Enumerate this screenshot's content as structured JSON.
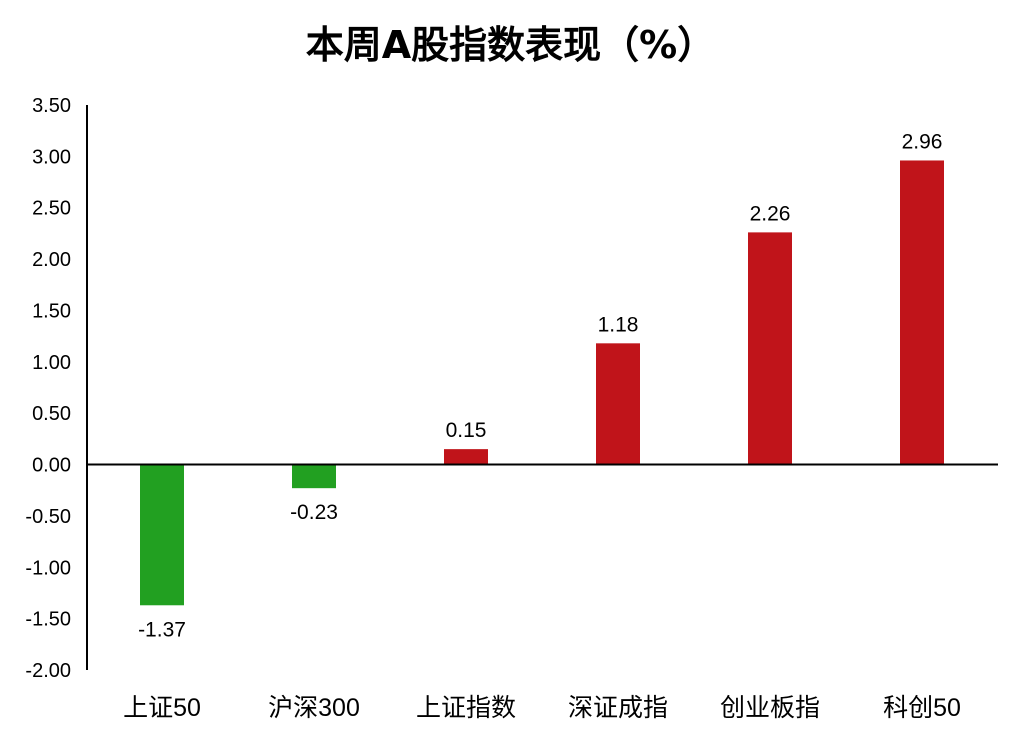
{
  "chart_data": {
    "type": "bar",
    "title": "本周A股指数表现（%）",
    "xlabel": "",
    "ylabel": "",
    "categories": [
      "上证50",
      "沪深300",
      "上证指数",
      "深证成指",
      "创业板指",
      "科创50"
    ],
    "values": [
      -1.37,
      -0.23,
      0.15,
      1.18,
      2.26,
      2.96
    ],
    "ylim": [
      -2.0,
      3.5
    ],
    "yticks": [
      "3.50",
      "3.00",
      "2.50",
      "2.00",
      "1.50",
      "1.00",
      "0.50",
      "0.00",
      "-0.50",
      "-1.00",
      "-1.50",
      "-2.00"
    ],
    "data_labels": [
      "-1.37",
      "-0.23",
      "0.15",
      "1.18",
      "2.26",
      "2.96"
    ],
    "grid": false,
    "legend": "none",
    "colors": {
      "positive": "#C0141A",
      "negative": "#22A021",
      "axis": "#000000"
    }
  }
}
